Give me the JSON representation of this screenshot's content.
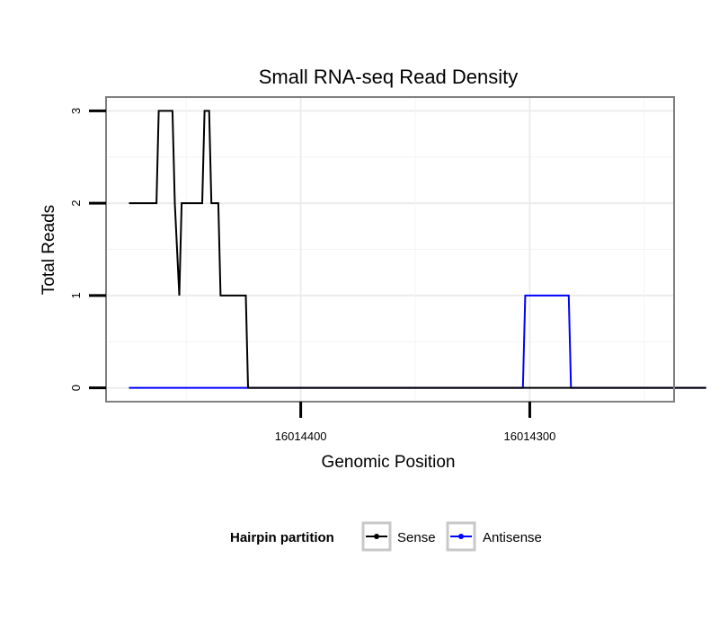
{
  "chart_data": {
    "type": "line",
    "title": "Small RNA-seq Read Density",
    "xlabel": "Genomic Position",
    "ylabel": "Total Reads",
    "x_reversed": true,
    "xlim": [
      16014485,
      16014237
    ],
    "ylim": [
      -0.15,
      3.15
    ],
    "y_ticks": [
      0,
      1,
      2,
      3
    ],
    "y_tick_labels": [
      "0",
      "1",
      "2",
      "3"
    ],
    "x_ticks": [
      16014400,
      16014300
    ],
    "x_tick_labels": [
      "16014400",
      "16014300"
    ],
    "grid": true,
    "legend": {
      "title": "Hairpin partition",
      "position": "bottom",
      "entries": [
        {
          "name": "Sense",
          "color": "#000000"
        },
        {
          "name": "Antisense",
          "color": "#0000ff"
        }
      ]
    },
    "series": [
      {
        "name": "Sense",
        "color": "#000000",
        "x": [
          16014475,
          16014463,
          16014462,
          16014456,
          16014455,
          16014453,
          16014452,
          16014443,
          16014442,
          16014440,
          16014439,
          16014436,
          16014435,
          16014432,
          16014431,
          16014424,
          16014423,
          16014223
        ],
        "y": [
          2,
          2,
          3,
          3,
          2,
          1,
          2,
          2,
          3,
          3,
          2,
          2,
          1,
          1,
          1,
          1,
          0,
          0
        ]
      },
      {
        "name": "Antisense",
        "color": "#0000ff",
        "x": [
          16014475,
          16014303,
          16014302,
          16014283,
          16014282,
          16014223
        ],
        "y": [
          0,
          0,
          1,
          1,
          0,
          0
        ]
      }
    ]
  }
}
